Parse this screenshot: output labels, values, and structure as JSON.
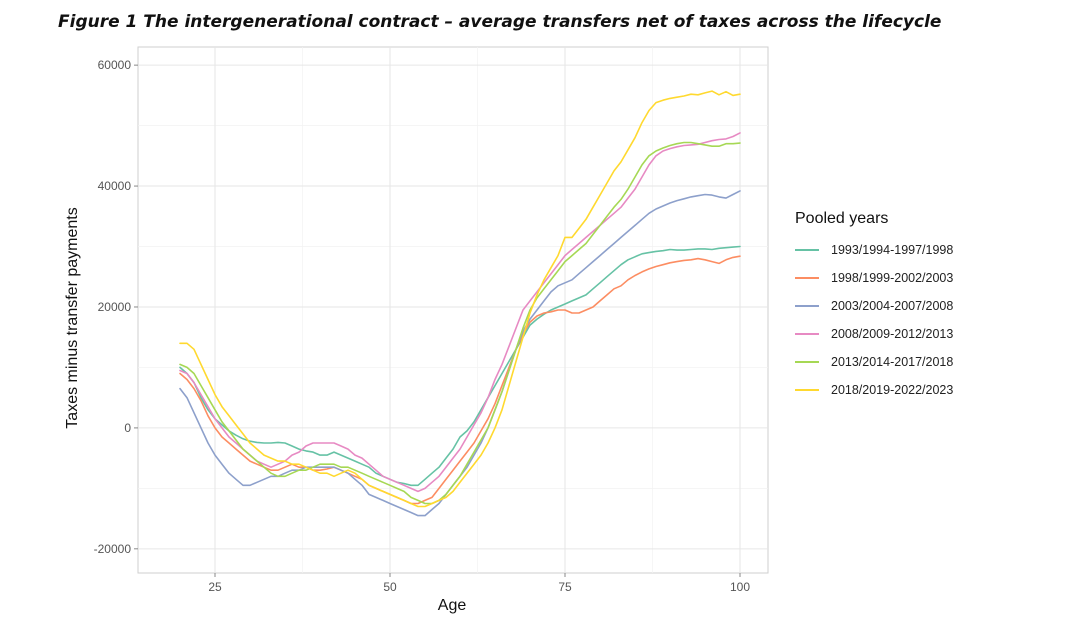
{
  "figure_title": "Figure 1 The intergenerational contract – average transfers net of taxes across the lifecycle",
  "chart_data": {
    "type": "line",
    "title": "Figure 1 The intergenerational contract – average transfers net of taxes across the lifecycle",
    "xlabel": "Age",
    "ylabel": "Taxes minus transfer payments",
    "xlim": [
      14,
      104
    ],
    "ylim": [
      -24000,
      63000
    ],
    "xticks": [
      25,
      50,
      75,
      100
    ],
    "xtick_labels": [
      "25",
      "50",
      "75",
      "100"
    ],
    "yticks": [
      -20000,
      0,
      20000,
      40000,
      60000
    ],
    "ytick_labels": [
      "-20000",
      "0",
      "20000",
      "40000",
      "60000"
    ],
    "grid": true,
    "legend_title": "Pooled years",
    "legend_position": "right",
    "x": [
      20,
      21,
      22,
      23,
      24,
      25,
      26,
      27,
      28,
      29,
      30,
      31,
      32,
      33,
      34,
      35,
      36,
      37,
      38,
      39,
      40,
      41,
      42,
      43,
      44,
      45,
      46,
      47,
      48,
      49,
      50,
      51,
      52,
      53,
      54,
      55,
      56,
      57,
      58,
      59,
      60,
      61,
      62,
      63,
      64,
      65,
      66,
      67,
      68,
      69,
      70,
      71,
      72,
      73,
      74,
      75,
      76,
      77,
      78,
      79,
      80,
      81,
      82,
      83,
      84,
      85,
      86,
      87,
      88,
      89,
      90,
      91,
      92,
      93,
      94,
      95,
      96,
      97,
      98,
      99,
      100
    ],
    "series": [
      {
        "name": "1993/1994-1997/1998",
        "color": "#66c2a5",
        "values": [
          10000,
          9000,
          7500,
          5000,
          3000,
          1500,
          500,
          -500,
          -1200,
          -1800,
          -2200,
          -2400,
          -2500,
          -2500,
          -2400,
          -2500,
          -3000,
          -3500,
          -3800,
          -4000,
          -4500,
          -4500,
          -4000,
          -4500,
          -5000,
          -5500,
          -6000,
          -6500,
          -7500,
          -8000,
          -8500,
          -9000,
          -9200,
          -9500,
          -9500,
          -8500,
          -7500,
          -6500,
          -5000,
          -3500,
          -1500,
          -500,
          1000,
          3000,
          5000,
          7000,
          9000,
          11000,
          13000,
          15000,
          17000,
          18000,
          18800,
          19500,
          20000,
          20500,
          21000,
          21500,
          22000,
          23000,
          24000,
          25000,
          26000,
          27000,
          27800,
          28300,
          28800,
          29000,
          29200,
          29300,
          29500,
          29400,
          29400,
          29500,
          29600,
          29600,
          29500,
          29700,
          29800,
          29900,
          30000
        ]
      },
      {
        "name": "1998/1999-2002/2003",
        "color": "#fc8d62",
        "values": [
          9000,
          8000,
          6500,
          4500,
          2000,
          0,
          -1500,
          -2500,
          -3500,
          -4500,
          -5500,
          -6000,
          -6500,
          -7000,
          -7000,
          -6500,
          -6000,
          -6500,
          -6500,
          -7000,
          -7000,
          -6800,
          -6500,
          -7000,
          -7500,
          -8000,
          -8500,
          -9500,
          -10000,
          -10500,
          -11000,
          -11500,
          -12000,
          -12500,
          -12500,
          -12000,
          -11500,
          -10000,
          -8500,
          -7000,
          -5500,
          -4000,
          -2500,
          -500,
          1500,
          4000,
          7000,
          10000,
          13000,
          15500,
          17500,
          18500,
          19000,
          19200,
          19500,
          19500,
          19000,
          19000,
          19500,
          20000,
          21000,
          22000,
          23000,
          23500,
          24500,
          25200,
          25800,
          26300,
          26700,
          27000,
          27300,
          27500,
          27700,
          27800,
          28000,
          27800,
          27500,
          27200,
          27800,
          28200,
          28400
        ]
      },
      {
        "name": "2003/2004-2007/2008",
        "color": "#8da0cb",
        "values": [
          6500,
          5000,
          2500,
          0,
          -2500,
          -4500,
          -6000,
          -7500,
          -8500,
          -9500,
          -9500,
          -9000,
          -8500,
          -8000,
          -8000,
          -7500,
          -7000,
          -7000,
          -6500,
          -6500,
          -6500,
          -6500,
          -6500,
          -7000,
          -7500,
          -8500,
          -9500,
          -11000,
          -11500,
          -12000,
          -12500,
          -13000,
          -13500,
          -14000,
          -14500,
          -14500,
          -13500,
          -12500,
          -11000,
          -9500,
          -8000,
          -6500,
          -4500,
          -2500,
          0,
          3000,
          6000,
          9500,
          13000,
          16000,
          18000,
          19500,
          21000,
          22500,
          23500,
          24000,
          24500,
          25500,
          26500,
          27500,
          28500,
          29500,
          30500,
          31500,
          32500,
          33500,
          34500,
          35500,
          36200,
          36700,
          37200,
          37600,
          37900,
          38200,
          38400,
          38600,
          38500,
          38200,
          38000,
          38600,
          39200
        ]
      },
      {
        "name": "2008/2009-2012/2013",
        "color": "#e78ac3",
        "values": [
          9500,
          9000,
          7500,
          5500,
          3500,
          1500,
          0,
          -1500,
          -2500,
          -3500,
          -4500,
          -5500,
          -6000,
          -6500,
          -6000,
          -5500,
          -4500,
          -4000,
          -3000,
          -2500,
          -2500,
          -2500,
          -2500,
          -3000,
          -3500,
          -4500,
          -5000,
          -6000,
          -7000,
          -8000,
          -8500,
          -9000,
          -9500,
          -10000,
          -10500,
          -10000,
          -9000,
          -8000,
          -6500,
          -5000,
          -3500,
          -1500,
          500,
          2500,
          5000,
          8000,
          10500,
          13500,
          16500,
          19500,
          21000,
          22500,
          24000,
          25500,
          27000,
          28500,
          29500,
          30500,
          31500,
          32500,
          33500,
          34500,
          35500,
          36500,
          38000,
          39500,
          41500,
          43500,
          45000,
          45800,
          46200,
          46500,
          46700,
          46800,
          46900,
          47200,
          47500,
          47700,
          47800,
          48200,
          48800
        ]
      },
      {
        "name": "2013/2014-2017/2018",
        "color": "#a6d854",
        "values": [
          10500,
          10000,
          9000,
          7000,
          5000,
          3000,
          1000,
          -500,
          -2000,
          -3500,
          -4500,
          -5500,
          -6500,
          -7500,
          -8000,
          -8000,
          -7500,
          -7000,
          -7000,
          -6500,
          -6000,
          -6000,
          -6000,
          -6500,
          -6500,
          -7000,
          -7500,
          -8000,
          -8500,
          -9000,
          -9500,
          -10000,
          -10500,
          -11500,
          -12000,
          -12500,
          -12500,
          -12000,
          -11000,
          -9500,
          -8000,
          -6000,
          -4000,
          -2000,
          0,
          3000,
          6000,
          9500,
          13000,
          16500,
          19500,
          21500,
          23000,
          24500,
          26000,
          27500,
          28500,
          29500,
          30500,
          32000,
          33500,
          35000,
          36500,
          37800,
          39500,
          41500,
          43500,
          45000,
          45800,
          46300,
          46700,
          47000,
          47200,
          47200,
          47000,
          46800,
          46600,
          46600,
          47000,
          47000,
          47100
        ]
      },
      {
        "name": "2018/2019-2022/2023",
        "color": "#ffd92f",
        "values": [
          14000,
          14000,
          13000,
          10500,
          8000,
          5500,
          3500,
          2000,
          500,
          -1000,
          -2500,
          -3500,
          -4500,
          -5000,
          -5500,
          -5500,
          -6000,
          -6000,
          -6500,
          -7000,
          -7500,
          -7500,
          -8000,
          -7500,
          -7000,
          -7500,
          -8500,
          -9500,
          -10000,
          -10500,
          -11000,
          -11500,
          -12000,
          -12500,
          -13000,
          -13000,
          -12500,
          -12000,
          -11500,
          -10500,
          -9000,
          -7500,
          -6000,
          -4500,
          -2500,
          0,
          3000,
          7000,
          11000,
          15000,
          19000,
          22000,
          24500,
          26500,
          28500,
          31500,
          31500,
          33000,
          34500,
          36500,
          38500,
          40500,
          42500,
          44000,
          46000,
          48000,
          50500,
          52500,
          53800,
          54200,
          54500,
          54700,
          54900,
          55200,
          55100,
          55400,
          55700,
          55100,
          55600,
          55000,
          55200
        ]
      }
    ]
  }
}
